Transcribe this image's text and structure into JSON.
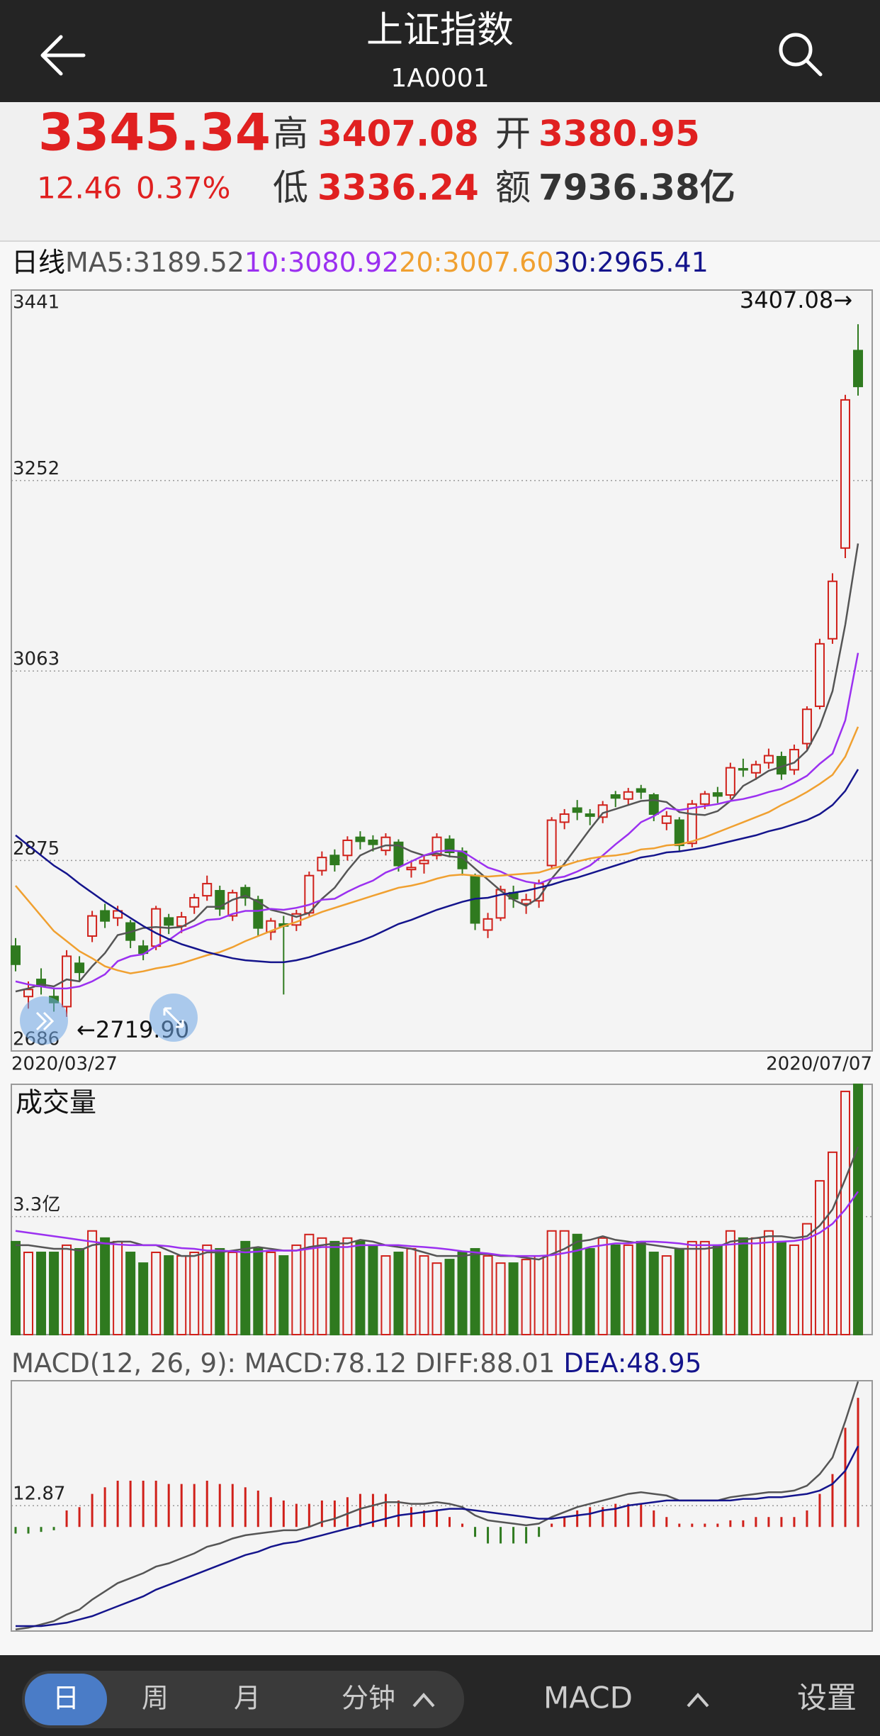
{
  "header": {
    "title": "上证指数",
    "code": "1A0001"
  },
  "quote": {
    "price": "3345.34",
    "change": "12.46",
    "change_pct": "0.37%",
    "high_label": "高",
    "high": "3407.08",
    "low_label": "低",
    "low": "3336.24",
    "open_label": "开",
    "open": "3380.95",
    "amount_label": "额",
    "amount": "7936.38亿"
  },
  "chart_data": [
    {
      "type": "candlestick",
      "period_label": "日线",
      "ma_legend": [
        "MA5:3189.52",
        "10:3080.92",
        "20:3007.60",
        "30:2965.41"
      ],
      "categories": [
        "2020/03/27",
        null,
        null,
        null,
        null,
        null,
        null,
        null,
        null,
        null,
        null,
        null,
        null,
        null,
        null,
        null,
        null,
        null,
        null,
        null,
        null,
        null,
        null,
        null,
        null,
        null,
        null,
        null,
        null,
        null,
        null,
        null,
        null,
        null,
        null,
        null,
        null,
        null,
        null,
        null,
        null,
        null,
        null,
        null,
        null,
        null,
        null,
        null,
        null,
        null,
        null,
        null,
        null,
        null,
        null,
        null,
        null,
        null,
        null,
        null,
        null,
        null,
        null,
        null,
        null,
        null,
        "2020/07/07"
      ],
      "open": [
        2790,
        2740,
        2757,
        2740,
        2730,
        2773,
        2800,
        2825,
        2818,
        2813,
        2790,
        2790,
        2818,
        2810,
        2829,
        2840,
        2845,
        2820,
        2848,
        2836,
        2804,
        2812,
        2811,
        2823,
        2865,
        2880,
        2880,
        2898,
        2895,
        2885,
        2893,
        2866,
        2872,
        2880,
        2896,
        2884,
        2860,
        2806,
        2818,
        2843,
        2832,
        2835,
        2870,
        2913,
        2927,
        2921,
        2918,
        2940,
        2936,
        2946,
        2940,
        2912,
        2915,
        2892,
        2931,
        2942,
        2940,
        2966,
        2962,
        2972,
        2978,
        2965,
        2991,
        3028,
        3095,
        3185,
        3380.95
      ],
      "high": [
        2798,
        2755,
        2768,
        2748,
        2786,
        2780,
        2825,
        2832,
        2830,
        2816,
        2796,
        2830,
        2822,
        2824,
        2842,
        2860,
        2850,
        2846,
        2851,
        2840,
        2818,
        2820,
        2826,
        2864,
        2884,
        2886,
        2899,
        2904,
        2900,
        2902,
        2896,
        2875,
        2880,
        2902,
        2900,
        2888,
        2862,
        2823,
        2850,
        2850,
        2842,
        2856,
        2918,
        2926,
        2935,
        2926,
        2934,
        2944,
        2947,
        2950,
        2942,
        2924,
        2918,
        2935,
        2944,
        2948,
        2972,
        2976,
        2974,
        2986,
        2983,
        2990,
        3028,
        3095,
        3160,
        3337,
        3407.08
      ],
      "low": [
        2765,
        2728,
        2742,
        2725,
        2719.9,
        2755,
        2794,
        2808,
        2810,
        2788,
        2776,
        2786,
        2802,
        2803,
        2822,
        2835,
        2820,
        2815,
        2830,
        2800,
        2796,
        2742,
        2805,
        2820,
        2860,
        2864,
        2875,
        2886,
        2884,
        2880,
        2864,
        2858,
        2862,
        2876,
        2878,
        2860,
        2806,
        2798,
        2815,
        2828,
        2822,
        2828,
        2866,
        2906,
        2915,
        2910,
        2912,
        2928,
        2930,
        2936,
        2914,
        2905,
        2884,
        2888,
        2926,
        2932,
        2936,
        2958,
        2955,
        2966,
        2955,
        2960,
        2985,
        3025,
        3090,
        3175,
        3336.24
      ],
      "close": [
        2772,
        2747,
        2750,
        2734,
        2780,
        2764,
        2820,
        2815,
        2825,
        2796,
        2783,
        2827,
        2811,
        2819,
        2838,
        2852,
        2827,
        2843,
        2838,
        2808,
        2815,
        2810,
        2822,
        2860,
        2878,
        2871,
        2895,
        2894,
        2891,
        2898,
        2870,
        2868,
        2875,
        2898,
        2883,
        2867,
        2813,
        2817,
        2846,
        2837,
        2836,
        2852,
        2915,
        2921,
        2923,
        2919,
        2930,
        2937,
        2943,
        2943,
        2921,
        2919,
        2890,
        2931,
        2941,
        2939,
        2967,
        2965,
        2970,
        2979,
        2961,
        2985,
        3025,
        3090,
        3152,
        3332,
        3345.34
      ],
      "up_color": "#d0201a",
      "down_color": "#2f7a1f",
      "series": [
        {
          "color": "#555555",
          "values": [
            2745,
            2748,
            2752,
            2750,
            2757,
            2755,
            2770,
            2783,
            2801,
            2804,
            2808,
            2809,
            2808,
            2809,
            2816,
            2829,
            2829,
            2836,
            2840,
            2834,
            2826,
            2823,
            2819,
            2823,
            2837,
            2848,
            2865,
            2880,
            2886,
            2890,
            2890,
            2884,
            2880,
            2882,
            2879,
            2878,
            2867,
            2856,
            2845,
            2836,
            2830,
            2838,
            2857,
            2872,
            2889,
            2906,
            2922,
            2926,
            2930,
            2934,
            2935,
            2933,
            2923,
            2921,
            2920,
            2924,
            2934,
            2949,
            2956,
            2964,
            2968,
            2972,
            2984,
            3008,
            3043,
            3109,
            3189.52
          ]
        },
        {
          "color": "#9b30f0",
          "values": [
            2755,
            2752,
            2750,
            2748,
            2748,
            2750,
            2755,
            2762,
            2775,
            2780,
            2782,
            2790,
            2796,
            2805,
            2810,
            2816,
            2817,
            2822,
            2825,
            2825,
            2827,
            2826,
            2828,
            2831,
            2836,
            2837,
            2844,
            2850,
            2855,
            2863,
            2868,
            2874,
            2880,
            2884,
            2885,
            2884,
            2876,
            2868,
            2864,
            2858,
            2854,
            2852,
            2857,
            2859,
            2864,
            2870,
            2880,
            2891,
            2901,
            2913,
            2919,
            2927,
            2925,
            2927,
            2929,
            2931,
            2934,
            2936,
            2939,
            2943,
            2946,
            2952,
            2959,
            2971,
            2981,
            3014,
            3080.92
          ]
        },
        {
          "color": "#f0a030",
          "values": [
            2850,
            2835,
            2820,
            2805,
            2795,
            2785,
            2778,
            2770,
            2766,
            2763,
            2765,
            2768,
            2770,
            2773,
            2777,
            2781,
            2784,
            2789,
            2795,
            2800,
            2805,
            2810,
            2814,
            2819,
            2824,
            2828,
            2832,
            2836,
            2840,
            2844,
            2848,
            2850,
            2853,
            2857,
            2860,
            2861,
            2860,
            2859,
            2860,
            2861,
            2862,
            2863,
            2867,
            2870,
            2874,
            2877,
            2879,
            2880,
            2882,
            2886,
            2887,
            2890,
            2891,
            2894,
            2898,
            2903,
            2908,
            2913,
            2918,
            2923,
            2930,
            2936,
            2943,
            2951,
            2960,
            2978,
            3007.6
          ]
        },
        {
          "color": "#14148c",
          "values": [
            2900,
            2890,
            2880,
            2870,
            2862,
            2852,
            2843,
            2834,
            2826,
            2818,
            2810,
            2803,
            2797,
            2792,
            2788,
            2784,
            2781,
            2778,
            2776,
            2775,
            2774,
            2774,
            2776,
            2779,
            2783,
            2787,
            2791,
            2795,
            2800,
            2806,
            2812,
            2816,
            2821,
            2826,
            2830,
            2834,
            2837,
            2838,
            2841,
            2843,
            2845,
            2848,
            2851,
            2855,
            2858,
            2862,
            2866,
            2870,
            2874,
            2878,
            2880,
            2883,
            2884,
            2886,
            2888,
            2891,
            2894,
            2897,
            2900,
            2904,
            2907,
            2911,
            2915,
            2921,
            2930,
            2944,
            2965.41
          ]
        }
      ],
      "ylim": [
        2686,
        3441
      ],
      "yticks": [
        2686,
        2875,
        3063,
        3252,
        3441
      ],
      "grid": true,
      "high_annotation": "3407.08→",
      "low_annotation": "←2719.90"
    },
    {
      "type": "bar",
      "title": "成交量",
      "values": [
        2.6,
        2.3,
        2.3,
        2.3,
        2.5,
        2.4,
        2.9,
        2.7,
        2.6,
        2.3,
        2.0,
        2.3,
        2.2,
        2.2,
        2.3,
        2.5,
        2.4,
        2.3,
        2.6,
        2.4,
        2.3,
        2.2,
        2.5,
        2.8,
        2.7,
        2.6,
        2.7,
        2.6,
        2.5,
        2.2,
        2.3,
        2.4,
        2.2,
        2.0,
        2.1,
        2.3,
        2.4,
        2.2,
        2.0,
        2.0,
        2.1,
        2.2,
        2.9,
        2.9,
        2.8,
        2.4,
        2.7,
        2.5,
        2.5,
        2.6,
        2.3,
        2.2,
        2.4,
        2.6,
        2.6,
        2.5,
        2.9,
        2.7,
        2.7,
        2.9,
        2.6,
        2.5,
        3.1,
        4.3,
        5.1,
        6.8,
        7.0
      ],
      "up_color": "#d0201a",
      "down_color": "#2f7a1f",
      "series": [
        {
          "color": "#555555",
          "values": [
            2.5,
            2.5,
            2.45,
            2.4,
            2.4,
            2.35,
            2.5,
            2.55,
            2.6,
            2.6,
            2.5,
            2.5,
            2.35,
            2.2,
            2.2,
            2.3,
            2.3,
            2.35,
            2.4,
            2.45,
            2.4,
            2.35,
            2.35,
            2.45,
            2.5,
            2.55,
            2.55,
            2.65,
            2.6,
            2.5,
            2.45,
            2.4,
            2.3,
            2.2,
            2.2,
            2.2,
            2.25,
            2.25,
            2.2,
            2.2,
            2.15,
            2.1,
            2.25,
            2.4,
            2.6,
            2.65,
            2.75,
            2.65,
            2.6,
            2.55,
            2.5,
            2.45,
            2.4,
            2.4,
            2.4,
            2.45,
            2.6,
            2.65,
            2.7,
            2.75,
            2.75,
            2.7,
            2.75,
            3.05,
            3.5,
            4.35,
            5.25
          ]
        },
        {
          "color": "#9b30f0",
          "values": [
            2.9,
            2.85,
            2.8,
            2.75,
            2.7,
            2.65,
            2.6,
            2.55,
            2.52,
            2.5,
            2.5,
            2.5,
            2.47,
            2.42,
            2.4,
            2.35,
            2.35,
            2.33,
            2.3,
            2.32,
            2.35,
            2.35,
            2.35,
            2.4,
            2.45,
            2.45,
            2.45,
            2.5,
            2.5,
            2.5,
            2.5,
            2.47,
            2.45,
            2.42,
            2.38,
            2.33,
            2.3,
            2.27,
            2.22,
            2.2,
            2.2,
            2.2,
            2.22,
            2.28,
            2.35,
            2.45,
            2.5,
            2.55,
            2.55,
            2.6,
            2.6,
            2.58,
            2.55,
            2.5,
            2.5,
            2.5,
            2.52,
            2.55,
            2.55,
            2.58,
            2.6,
            2.62,
            2.68,
            2.85,
            3.1,
            3.5,
            4.0
          ]
        }
      ],
      "ylim": [
        0,
        7
      ],
      "yticks": [
        {
          "value": 3.3,
          "label": "3.3亿"
        }
      ],
      "grid": true
    },
    {
      "type": "macd",
      "title": "MACD(12, 26, 9): MACD:78.12 DIFF:88.01",
      "dea_label": "DEA:48.95",
      "values": [
        -4,
        -4,
        -3,
        -2,
        10,
        12,
        20,
        24,
        28,
        28,
        28,
        28,
        26,
        26,
        26,
        28,
        26,
        26,
        24,
        22,
        18,
        16,
        14,
        14,
        16,
        16,
        18,
        20,
        20,
        20,
        16,
        12,
        10,
        10,
        6,
        2,
        -6,
        -10,
        -10,
        -10,
        -10,
        -6,
        2,
        6,
        10,
        12,
        12,
        14,
        14,
        14,
        10,
        6,
        2,
        2,
        2,
        2,
        4,
        4,
        6,
        6,
        6,
        6,
        10,
        20,
        32,
        60,
        78.12
      ],
      "up_color": "#d0201a",
      "down_color": "#2f7a1f",
      "series": [
        {
          "color": "#555555",
          "values": [
            -62,
            -61,
            -59,
            -57,
            -53,
            -50,
            -44,
            -39,
            -34,
            -31,
            -28,
            -24,
            -22,
            -19,
            -16,
            -12,
            -10,
            -7,
            -5,
            -4,
            -3,
            -2,
            -2,
            0,
            3,
            5,
            8,
            11,
            13,
            15,
            15,
            14,
            14,
            15,
            14,
            12,
            7,
            4,
            3,
            2,
            1,
            2,
            6,
            9,
            12,
            14,
            16,
            18,
            20,
            21,
            20,
            19,
            16,
            16,
            16,
            16,
            18,
            19,
            20,
            21,
            21,
            22,
            25,
            32,
            42,
            64,
            88.01
          ]
        },
        {
          "color": "#14148c",
          "values": [
            -60,
            -60,
            -60,
            -59,
            -58,
            -56,
            -54,
            -51,
            -48,
            -45,
            -42,
            -38,
            -35,
            -32,
            -29,
            -26,
            -23,
            -20,
            -17,
            -15,
            -12,
            -10,
            -9,
            -7,
            -5,
            -3,
            -1,
            1,
            3,
            5,
            7,
            8,
            9,
            10,
            11,
            11,
            10,
            9,
            8,
            7,
            6,
            5,
            5,
            6,
            7,
            8,
            10,
            11,
            13,
            14,
            15,
            16,
            16,
            16,
            16,
            16,
            16,
            17,
            17,
            18,
            18,
            19,
            20,
            22,
            26,
            34,
            48.95
          ]
        }
      ],
      "ylim": [
        -63,
        88.5
      ],
      "yticks": [
        12.87
      ],
      "grid": true
    }
  ],
  "toolbar": {
    "periods": [
      "日",
      "周",
      "月",
      "分钟"
    ],
    "indicator": "MACD",
    "settings": "设置"
  }
}
